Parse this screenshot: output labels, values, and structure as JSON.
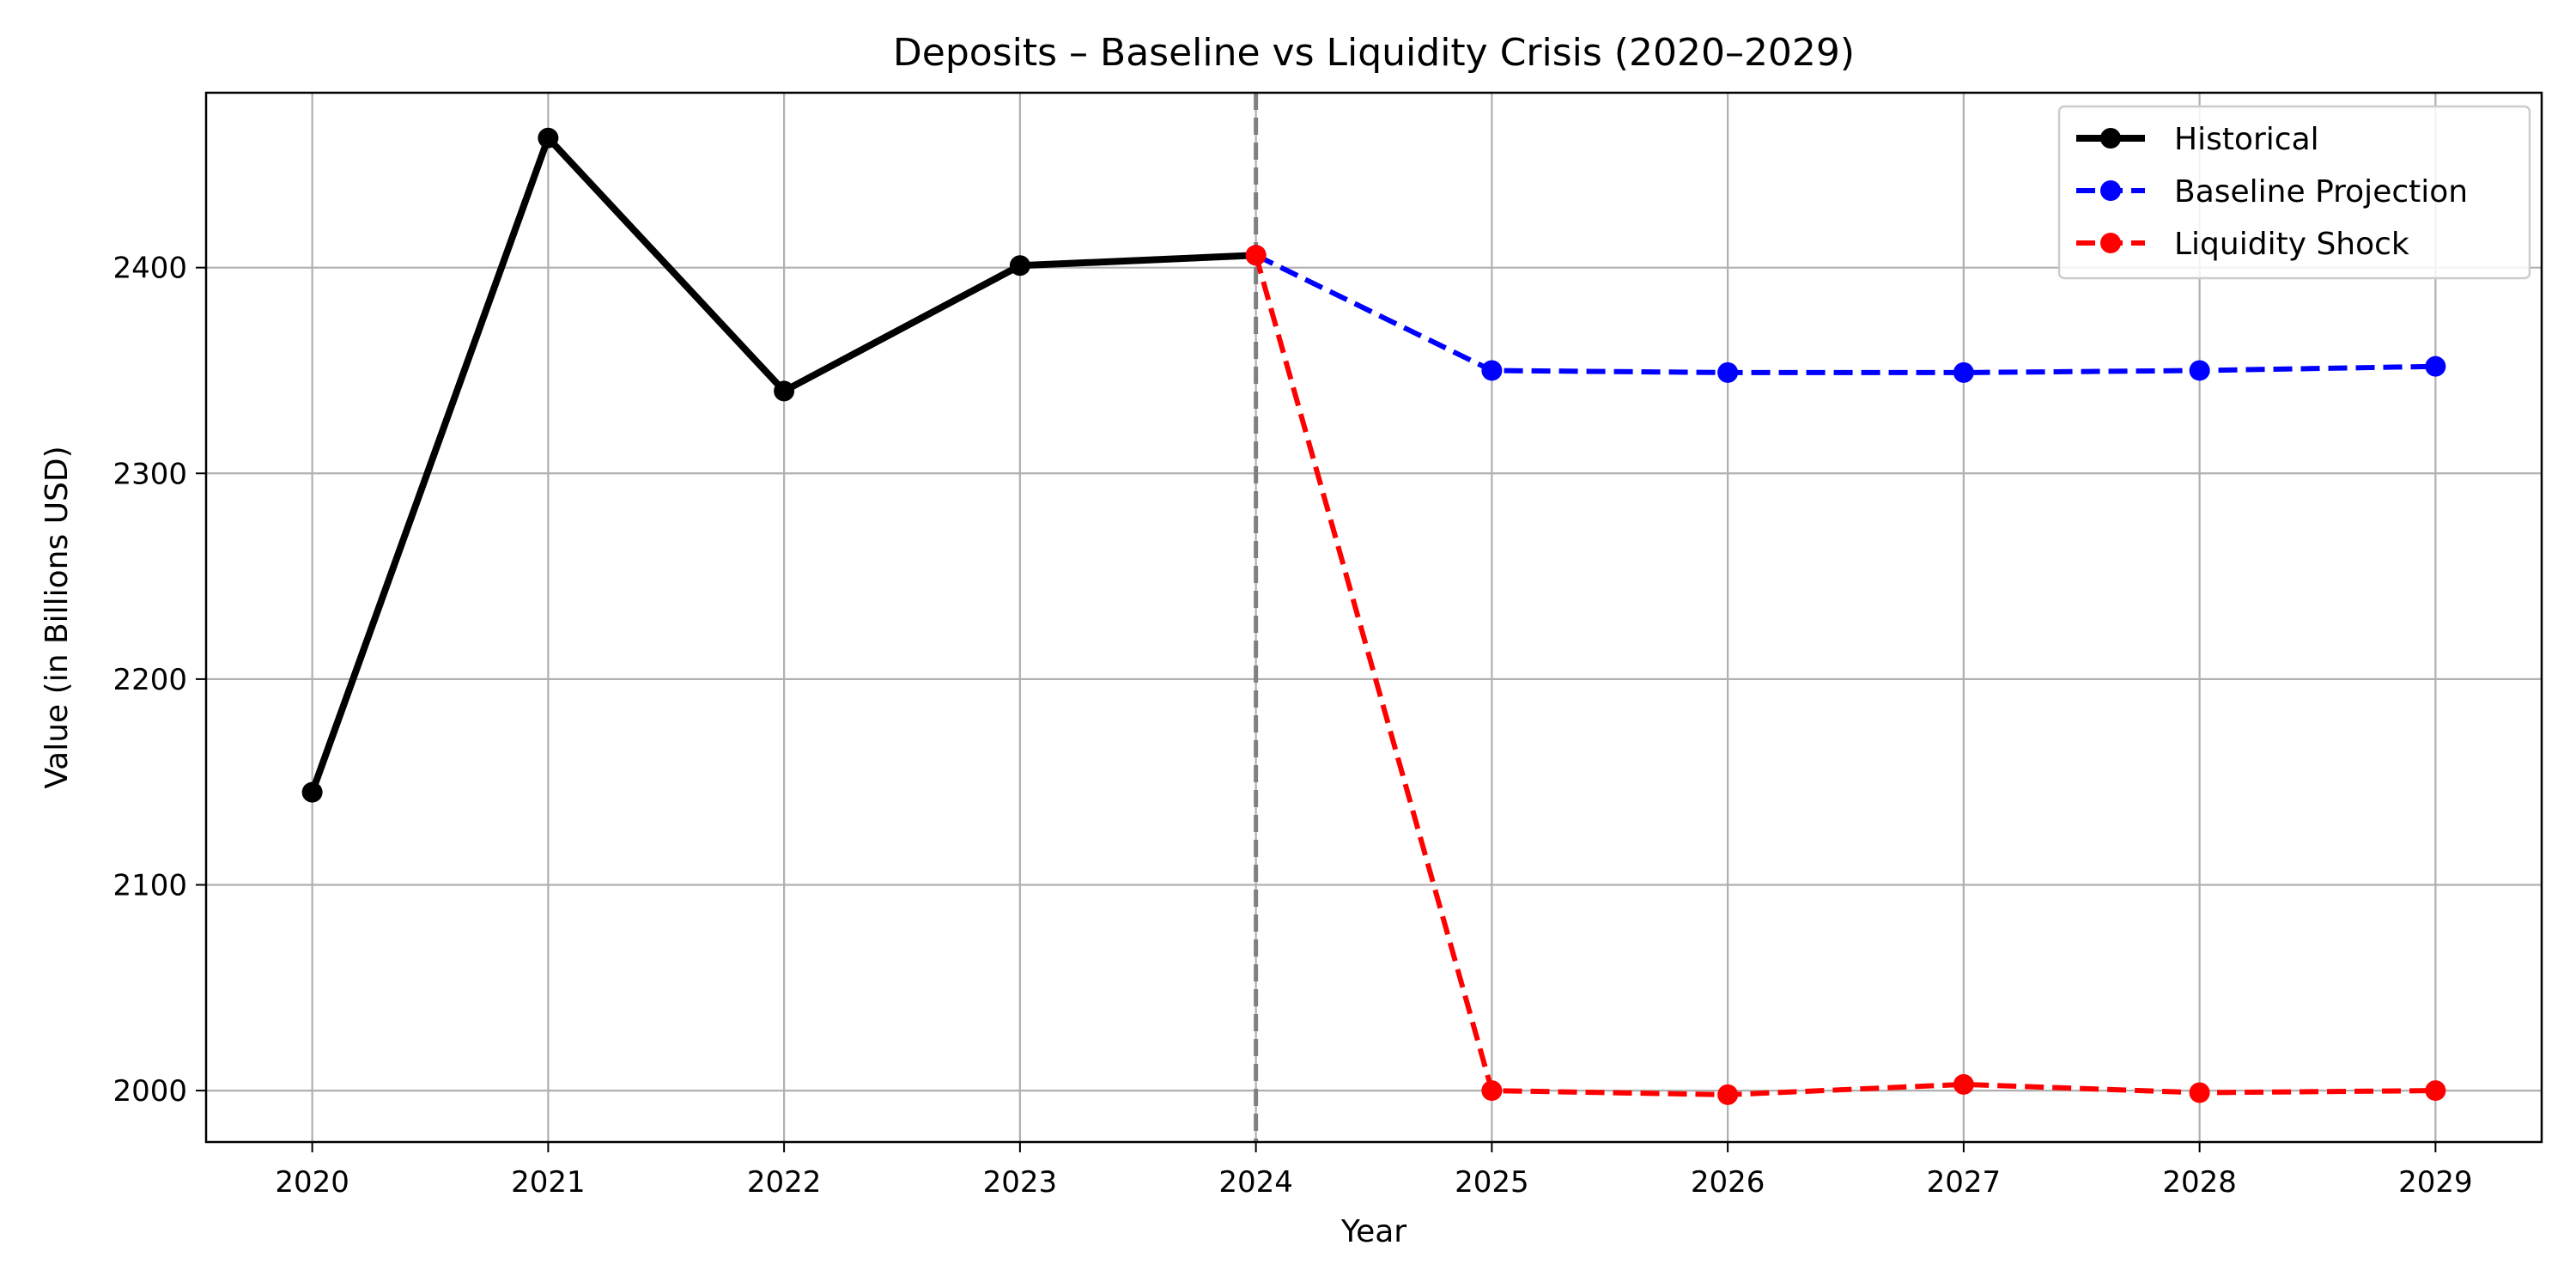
{
  "chart_data": {
    "type": "line",
    "title": "Deposits – Baseline vs Liquidity Crisis (2020–2029)",
    "xlabel": "Year",
    "ylabel": "Value (in Billions USD)",
    "x_ticks": [
      "2020",
      "2021",
      "2022",
      "2023",
      "2024",
      "2025",
      "2026",
      "2027",
      "2028",
      "2029"
    ],
    "y_ticks": [
      "2000",
      "2100",
      "2200",
      "2300",
      "2400"
    ],
    "xlim": [
      2019.55,
      2029.45
    ],
    "ylim": [
      1975,
      2485
    ],
    "grid": true,
    "legend_position": "top-right",
    "divider_x": 2024,
    "series": [
      {
        "name": "Historical",
        "color": "#000000",
        "style": "solid",
        "x": [
          2020,
          2021,
          2022,
          2023,
          2024
        ],
        "y": [
          2145,
          2463,
          2340,
          2401,
          2406
        ]
      },
      {
        "name": "Baseline Projection",
        "color": "#0000ff",
        "style": "dashed",
        "x": [
          2024,
          2025,
          2026,
          2027,
          2028,
          2029
        ],
        "y": [
          2406,
          2350,
          2349,
          2349,
          2350,
          2352
        ]
      },
      {
        "name": "Liquidity Shock",
        "color": "#ff0000",
        "style": "dashed",
        "x": [
          2024,
          2025,
          2026,
          2027,
          2028,
          2029
        ],
        "y": [
          2406,
          2000,
          1998,
          2003,
          1999,
          2000
        ]
      }
    ]
  }
}
